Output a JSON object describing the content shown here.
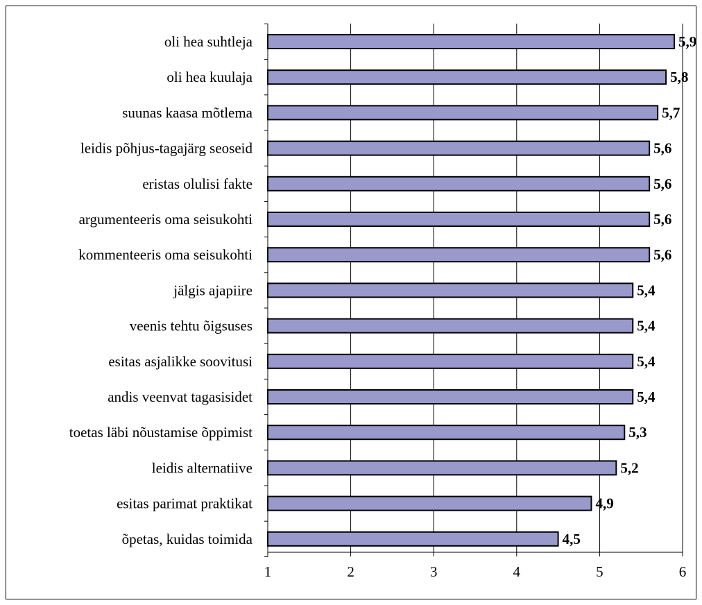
{
  "chart_data": {
    "type": "bar",
    "orientation": "horizontal",
    "title": "",
    "xlabel": "",
    "ylabel": "",
    "categories": [
      "oli hea suhtleja",
      "oli hea kuulaja",
      "suunas kaasa mõtlema",
      "leidis põhjus-tagajärg seoseid",
      "eristas olulisi fakte",
      "argumenteeris oma seisukohti",
      "kommenteeris oma seisukohti",
      "jälgis ajapiire",
      "veenis tehtu õigsuses",
      "esitas asjalikke soovitusi",
      "andis veenvat tagasisidet",
      "toetas läbi nõustamise õppimist",
      "leidis alternatiive",
      "esitas parimat praktikat",
      "õpetas, kuidas toimida"
    ],
    "values": [
      5.9,
      5.8,
      5.7,
      5.6,
      5.6,
      5.6,
      5.6,
      5.4,
      5.4,
      5.4,
      5.4,
      5.3,
      5.2,
      4.9,
      4.5
    ],
    "value_labels": [
      "5,9",
      "5,8",
      "5,7",
      "5,6",
      "5,6",
      "5,6",
      "5,6",
      "5,4",
      "5,4",
      "5,4",
      "5,4",
      "5,3",
      "5,2",
      "4,9",
      "4,5"
    ],
    "xlim": [
      1,
      6
    ],
    "ticks": [
      1,
      2,
      3,
      4,
      5,
      6
    ],
    "tick_labels": [
      "1",
      "2",
      "3",
      "4",
      "5",
      "6"
    ],
    "grid": "vertical",
    "legend": "none",
    "colors": {
      "bar_fill": "#9999cc",
      "bar_stroke": "#000000",
      "grid": "#000000",
      "axis": "#000000"
    }
  }
}
